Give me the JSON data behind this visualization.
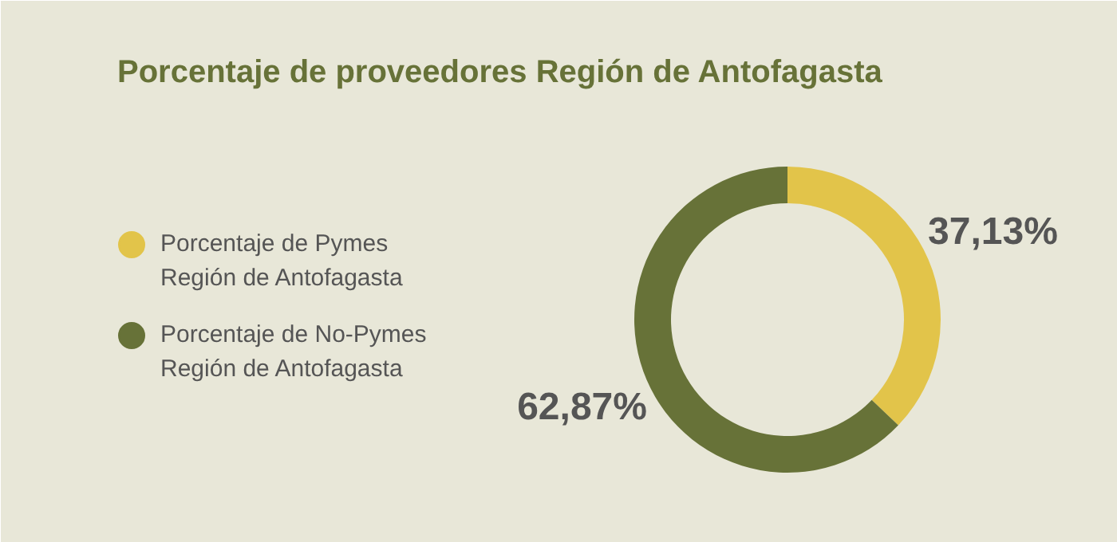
{
  "chart_data": {
    "type": "donut",
    "title": "Porcentaje de proveedores Región de Antofagasta",
    "categories": [
      "Porcentaje de Pymes Región de Antofagasta",
      "Porcentaje de No-Pymes Región de Antofagasta"
    ],
    "values": [
      37.13,
      62.87
    ],
    "colors": [
      "#e2c44a",
      "#677238"
    ],
    "value_labels": [
      "37,13%",
      "62,87%"
    ],
    "legend": "left"
  }
}
